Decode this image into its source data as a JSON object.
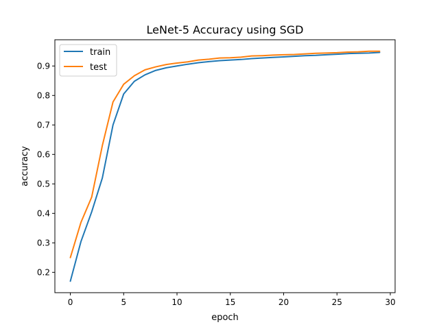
{
  "chart_data": {
    "type": "line",
    "title": "LeNet-5 Accuracy using SGD",
    "xlabel": "epoch",
    "ylabel": "accuracy",
    "xlim": [
      -1.45,
      30.45
    ],
    "ylim": [
      0.131,
      0.989
    ],
    "xticks": [
      0,
      5,
      10,
      15,
      20,
      25,
      30
    ],
    "yticks": [
      0.2,
      0.3,
      0.4,
      0.5,
      0.6,
      0.7,
      0.8,
      0.9
    ],
    "xtick_labels": [
      "0",
      "5",
      "10",
      "15",
      "20",
      "25",
      "30"
    ],
    "ytick_labels": [
      "0.2",
      "0.3",
      "0.4",
      "0.5",
      "0.6",
      "0.7",
      "0.8",
      "0.9"
    ],
    "grid": false,
    "legend": {
      "placement": "top-left"
    },
    "x": [
      0,
      1,
      2,
      3,
      4,
      5,
      6,
      7,
      8,
      9,
      10,
      11,
      12,
      13,
      14,
      15,
      16,
      17,
      18,
      19,
      20,
      21,
      22,
      23,
      24,
      25,
      26,
      27,
      28,
      29
    ],
    "series": [
      {
        "name": "train",
        "color": "#1f77b4",
        "values": [
          0.17,
          0.305,
          0.405,
          0.52,
          0.7,
          0.805,
          0.848,
          0.87,
          0.885,
          0.894,
          0.9,
          0.906,
          0.911,
          0.915,
          0.918,
          0.92,
          0.922,
          0.925,
          0.927,
          0.929,
          0.931,
          0.933,
          0.935,
          0.936,
          0.938,
          0.94,
          0.942,
          0.943,
          0.944,
          0.946
        ]
      },
      {
        "name": "test",
        "color": "#ff7f0e",
        "values": [
          0.25,
          0.37,
          0.455,
          0.63,
          0.778,
          0.838,
          0.867,
          0.887,
          0.897,
          0.905,
          0.91,
          0.914,
          0.92,
          0.923,
          0.927,
          0.928,
          0.93,
          0.934,
          0.935,
          0.937,
          0.938,
          0.939,
          0.941,
          0.943,
          0.944,
          0.945,
          0.947,
          0.948,
          0.95,
          0.95
        ]
      }
    ]
  }
}
